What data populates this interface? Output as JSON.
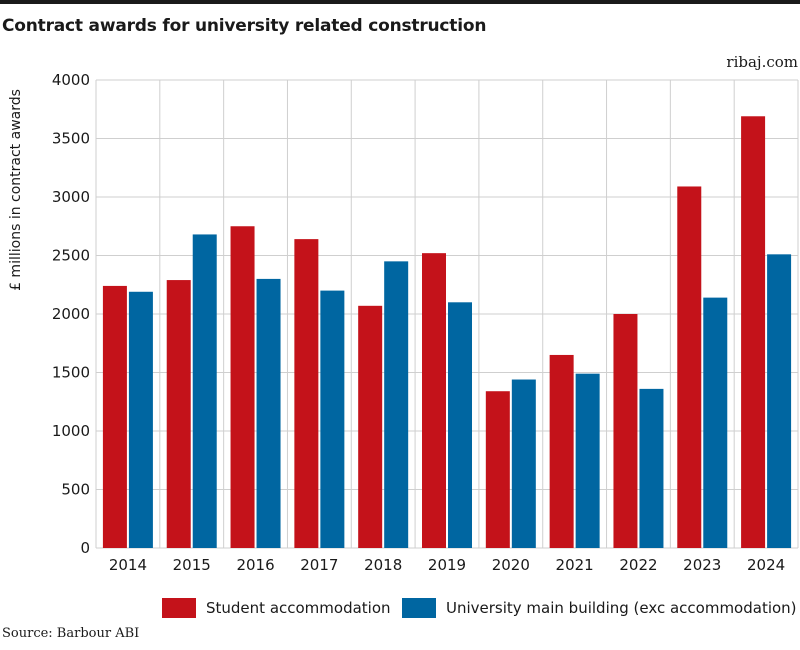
{
  "header": {
    "title": "Contract awards for university related construction",
    "site": "ribaj.com"
  },
  "footer": {
    "source": "Source: Barbour ABI"
  },
  "chart_data": {
    "type": "bar",
    "title": "Contract awards for university related construction",
    "xlabel": "",
    "ylabel": "£ millions in contract awards",
    "ylim": [
      0,
      4000
    ],
    "yticks": [
      0,
      500,
      1000,
      1500,
      2000,
      2500,
      3000,
      3500,
      4000
    ],
    "grid": true,
    "legend": "bottom",
    "categories": [
      "2014",
      "2015",
      "2016",
      "2017",
      "2018",
      "2019",
      "2020",
      "2021",
      "2022",
      "2023",
      "2024"
    ],
    "series": [
      {
        "name": "Student accommodation",
        "color": "#c4121a",
        "values": [
          2240,
          2290,
          2750,
          2640,
          2070,
          2520,
          1340,
          1650,
          2000,
          3090,
          3690
        ]
      },
      {
        "name": "University main building (exc accommodation)",
        "color": "#0066a1",
        "values": [
          2190,
          2680,
          2300,
          2200,
          2450,
          2100,
          1440,
          1490,
          1360,
          2140,
          2510
        ]
      }
    ]
  }
}
